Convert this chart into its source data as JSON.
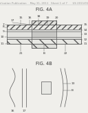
{
  "bg_color": "#f0efeb",
  "header_text": "Patent Application Publication    May 31, 2011   Sheet 1 of 7      US 2011/0129489 A1",
  "header_fontsize": 2.8,
  "fig4a_label": "FIG. 4A",
  "fig4b_label": "FIG. 4B",
  "label_fontsize": 4.8,
  "ref_fontsize": 3.2,
  "line_color": "#555555",
  "text_color": "#333333"
}
